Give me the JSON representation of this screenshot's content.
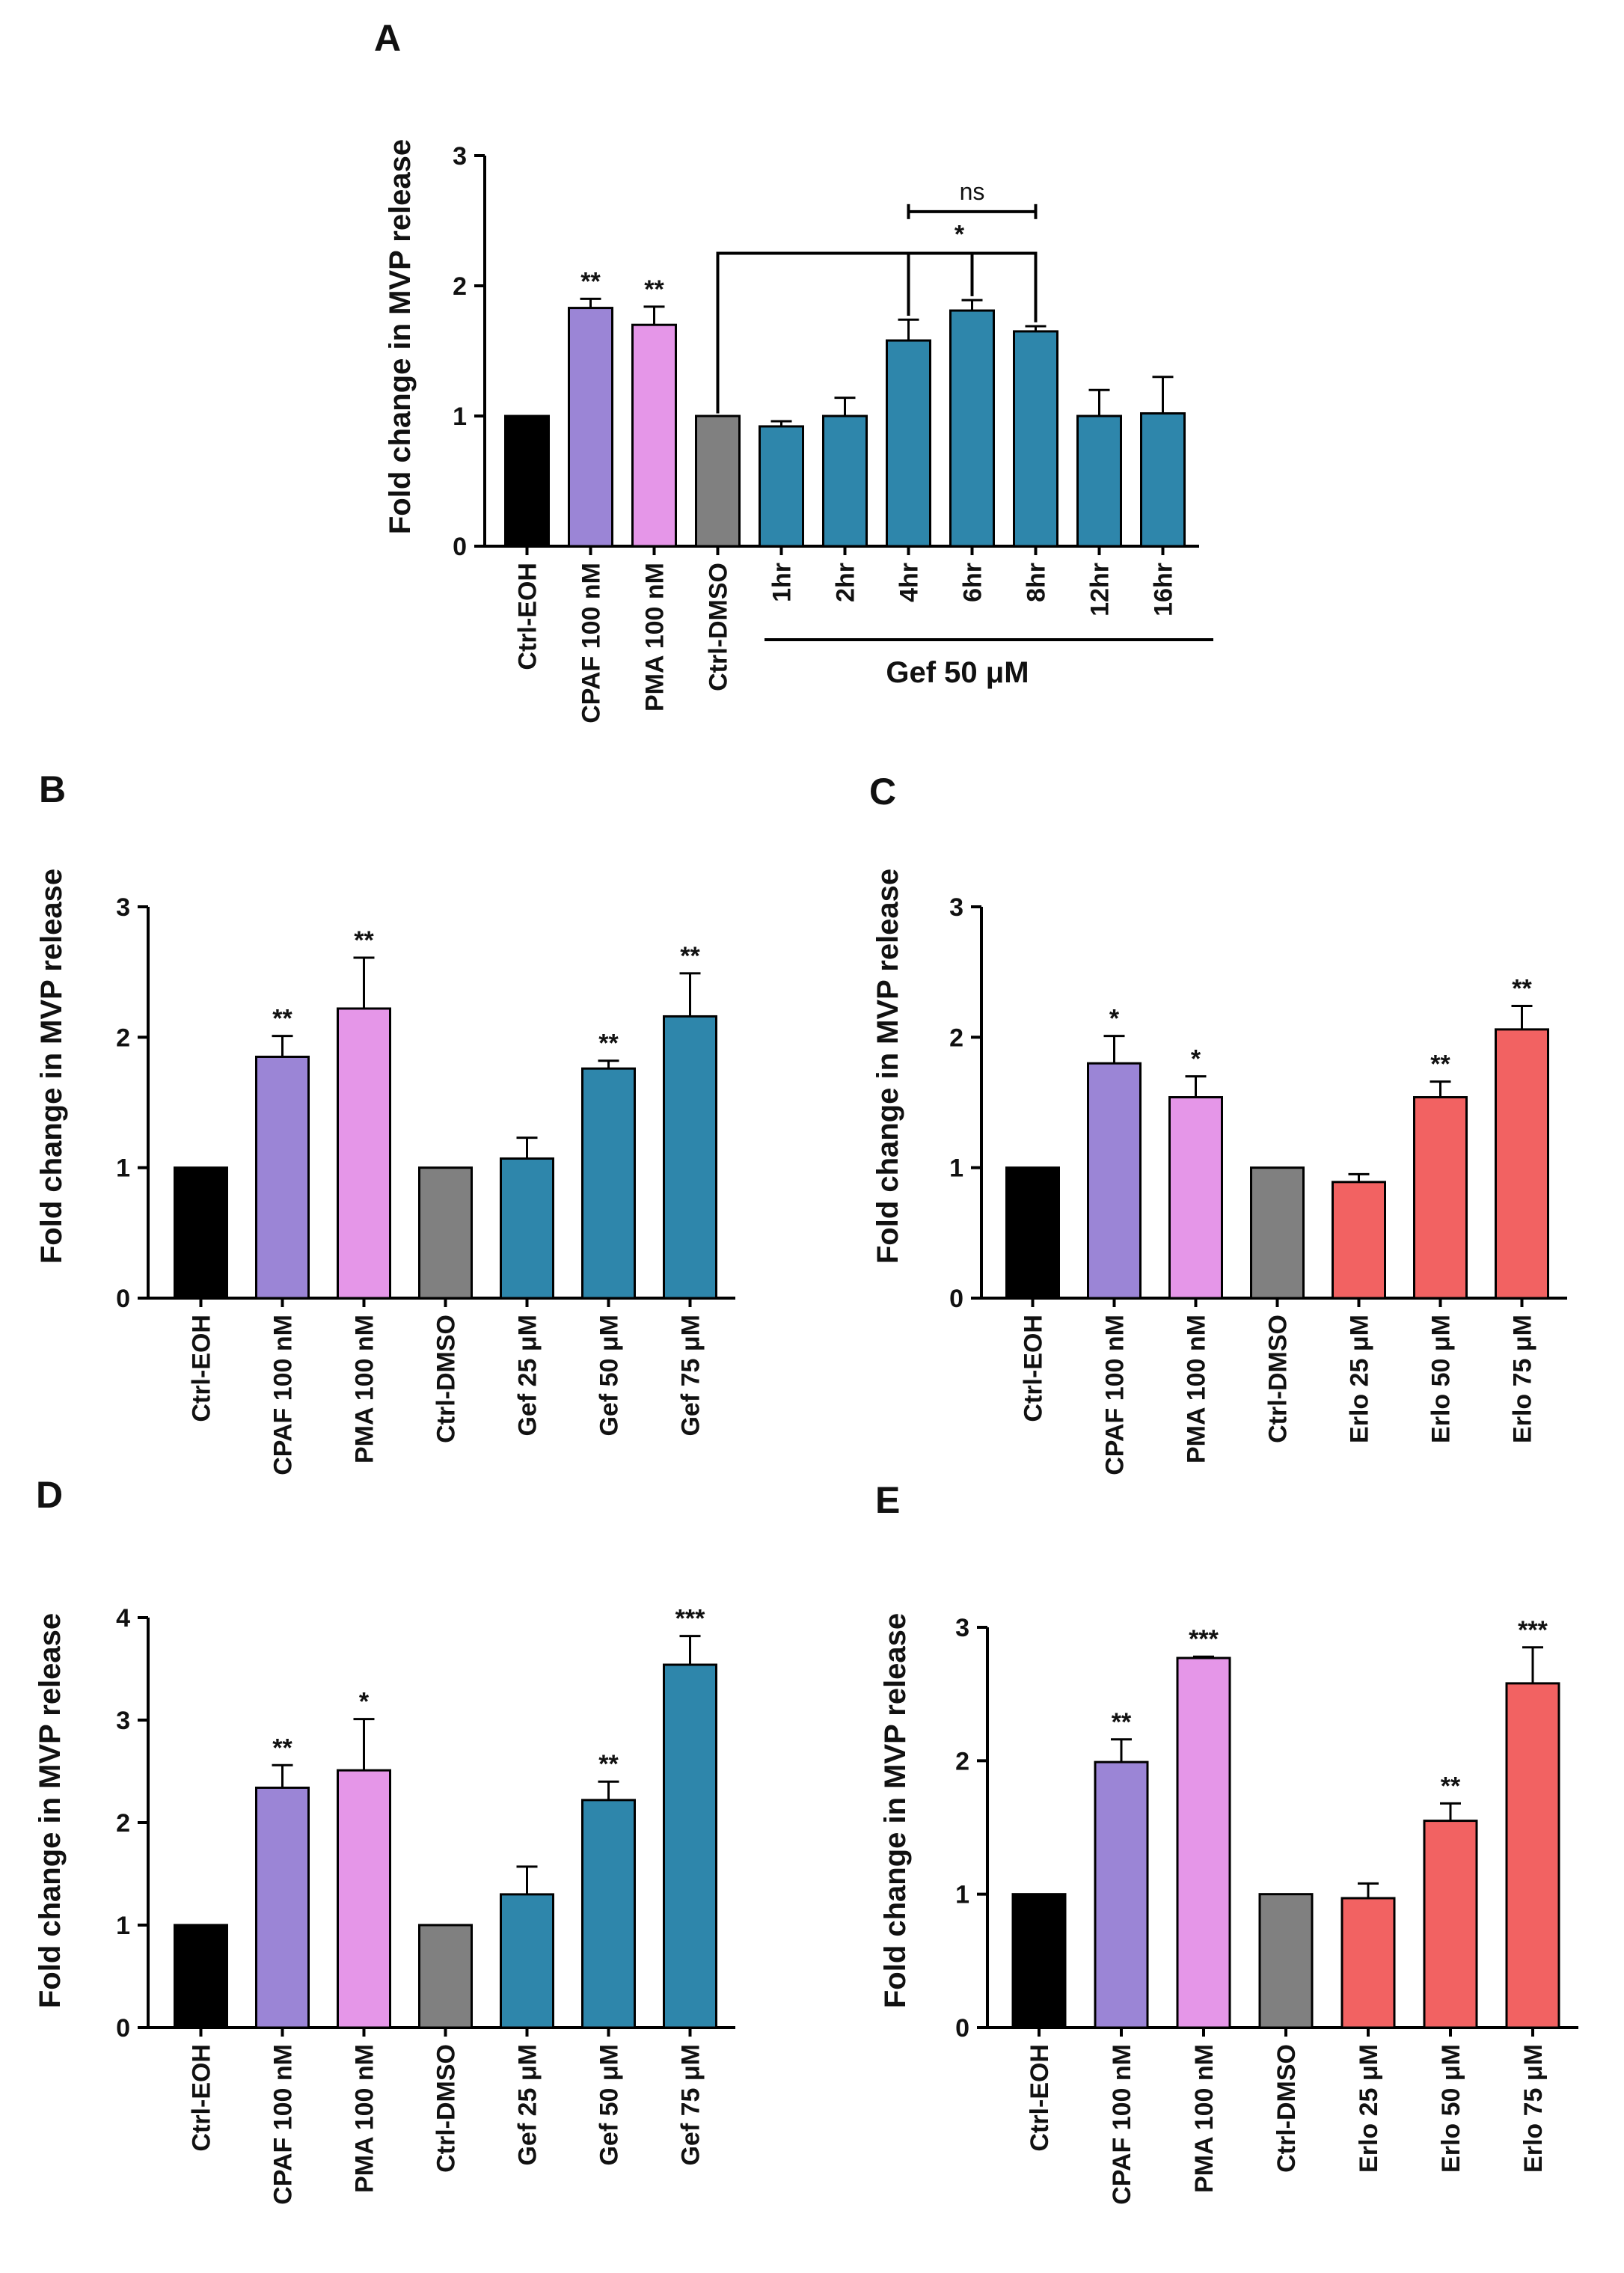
{
  "chart_data": [
    {
      "id": "A",
      "panel_label": "A",
      "type": "bar",
      "ylabel": "Fold change in MVP release",
      "ylim": [
        0,
        3
      ],
      "yticks": [
        "0",
        "1",
        "2",
        "3"
      ],
      "categories": [
        "Ctrl-EOH",
        "CPAF 100 nM",
        "PMA 100 nM",
        "Ctrl-DMSO",
        "1hr",
        "2hr",
        "4hr",
        "6hr",
        "8hr",
        "12hr",
        "16hr"
      ],
      "values": [
        1.0,
        1.83,
        1.7,
        1.0,
        0.92,
        1.0,
        1.58,
        1.81,
        1.65,
        1.0,
        1.02
      ],
      "errors": [
        0,
        0.07,
        0.14,
        0,
        0.04,
        0.14,
        0.16,
        0.08,
        0.04,
        0.2,
        0.28
      ],
      "significance": [
        "",
        "**",
        "**",
        "",
        "",
        "",
        "",
        "",
        "",
        "",
        ""
      ],
      "colors": [
        "#000000",
        "#9b85d6",
        "#e596e8",
        "#808080",
        "#2e86ab",
        "#2e86ab",
        "#2e86ab",
        "#2e86ab",
        "#2e86ab",
        "#2e86ab",
        "#2e86ab"
      ],
      "group_label": "Gef 50 μM",
      "comparison_star": "*",
      "comparison_ns": "ns"
    },
    {
      "id": "B",
      "panel_label": "B",
      "type": "bar",
      "ylabel": "Fold change in MVP release",
      "ylim": [
        0,
        3
      ],
      "yticks": [
        "0",
        "1",
        "2",
        "3"
      ],
      "categories": [
        "Ctrl-EOH",
        "CPAF 100 nM",
        "PMA 100 nM",
        "Ctrl-DMSO",
        "Gef 25 μM",
        "Gef 50 μM",
        "Gef 75 μM"
      ],
      "values": [
        1.0,
        1.85,
        2.22,
        1.0,
        1.07,
        1.76,
        2.16
      ],
      "errors": [
        0,
        0.16,
        0.39,
        0,
        0.16,
        0.06,
        0.33
      ],
      "significance": [
        "",
        "**",
        "**",
        "",
        "",
        "**",
        "**"
      ],
      "colors": [
        "#000000",
        "#9b85d6",
        "#e596e8",
        "#808080",
        "#2e86ab",
        "#2e86ab",
        "#2e86ab"
      ]
    },
    {
      "id": "C",
      "panel_label": "C",
      "type": "bar",
      "ylabel": "Fold change in MVP release",
      "ylim": [
        0,
        3
      ],
      "yticks": [
        "0",
        "1",
        "2",
        "3"
      ],
      "categories": [
        "Ctrl-EOH",
        "CPAF 100 nM",
        "PMA 100 nM",
        "Ctrl-DMSO",
        "Erlo 25 μM",
        "Erlo 50 μM",
        "Erlo 75 μM"
      ],
      "values": [
        1.0,
        1.8,
        1.54,
        1.0,
        0.89,
        1.54,
        2.06
      ],
      "errors": [
        0,
        0.21,
        0.16,
        0,
        0.06,
        0.12,
        0.18
      ],
      "significance": [
        "",
        "*",
        "*",
        "",
        "",
        "**",
        "**"
      ],
      "colors": [
        "#000000",
        "#9b85d6",
        "#e596e8",
        "#808080",
        "#f26262",
        "#f26262",
        "#f26262"
      ]
    },
    {
      "id": "D",
      "panel_label": "D",
      "type": "bar",
      "ylabel": "Fold change in MVP release",
      "ylim": [
        0,
        4
      ],
      "yticks": [
        "0",
        "1",
        "2",
        "3",
        "4"
      ],
      "categories": [
        "Ctrl-EOH",
        "CPAF 100 nM",
        "PMA 100 nM",
        "Ctrl-DMSO",
        "Gef 25 μM",
        "Gef 50 μM",
        "Gef 75 μM"
      ],
      "values": [
        1.0,
        2.34,
        2.51,
        1.0,
        1.3,
        2.22,
        3.54
      ],
      "errors": [
        0,
        0.22,
        0.5,
        0,
        0.27,
        0.18,
        0.28
      ],
      "significance": [
        "",
        "**",
        "*",
        "",
        "",
        "**",
        "***"
      ],
      "colors": [
        "#000000",
        "#9b85d6",
        "#e596e8",
        "#808080",
        "#2e86ab",
        "#2e86ab",
        "#2e86ab"
      ]
    },
    {
      "id": "E",
      "panel_label": "E",
      "type": "bar",
      "ylabel": "Fold change in MVP release",
      "ylim": [
        0,
        3
      ],
      "yticks": [
        "0",
        "1",
        "2",
        "3"
      ],
      "categories": [
        "Ctrl-EOH",
        "CPAF 100 nM",
        "PMA 100 nM",
        "Ctrl-DMSO",
        "Erlo 25 μM",
        "Erlo 50 μM",
        "Erlo 75 μM"
      ],
      "values": [
        1.0,
        1.99,
        2.77,
        1.0,
        0.97,
        1.55,
        2.58
      ],
      "errors": [
        0,
        0.17,
        0.01,
        0,
        0.11,
        0.13,
        0.27
      ],
      "significance": [
        "",
        "**",
        "***",
        "",
        "",
        "**",
        "***"
      ],
      "colors": [
        "#000000",
        "#9b85d6",
        "#e596e8",
        "#808080",
        "#f26262",
        "#f26262",
        "#f26262"
      ]
    }
  ]
}
